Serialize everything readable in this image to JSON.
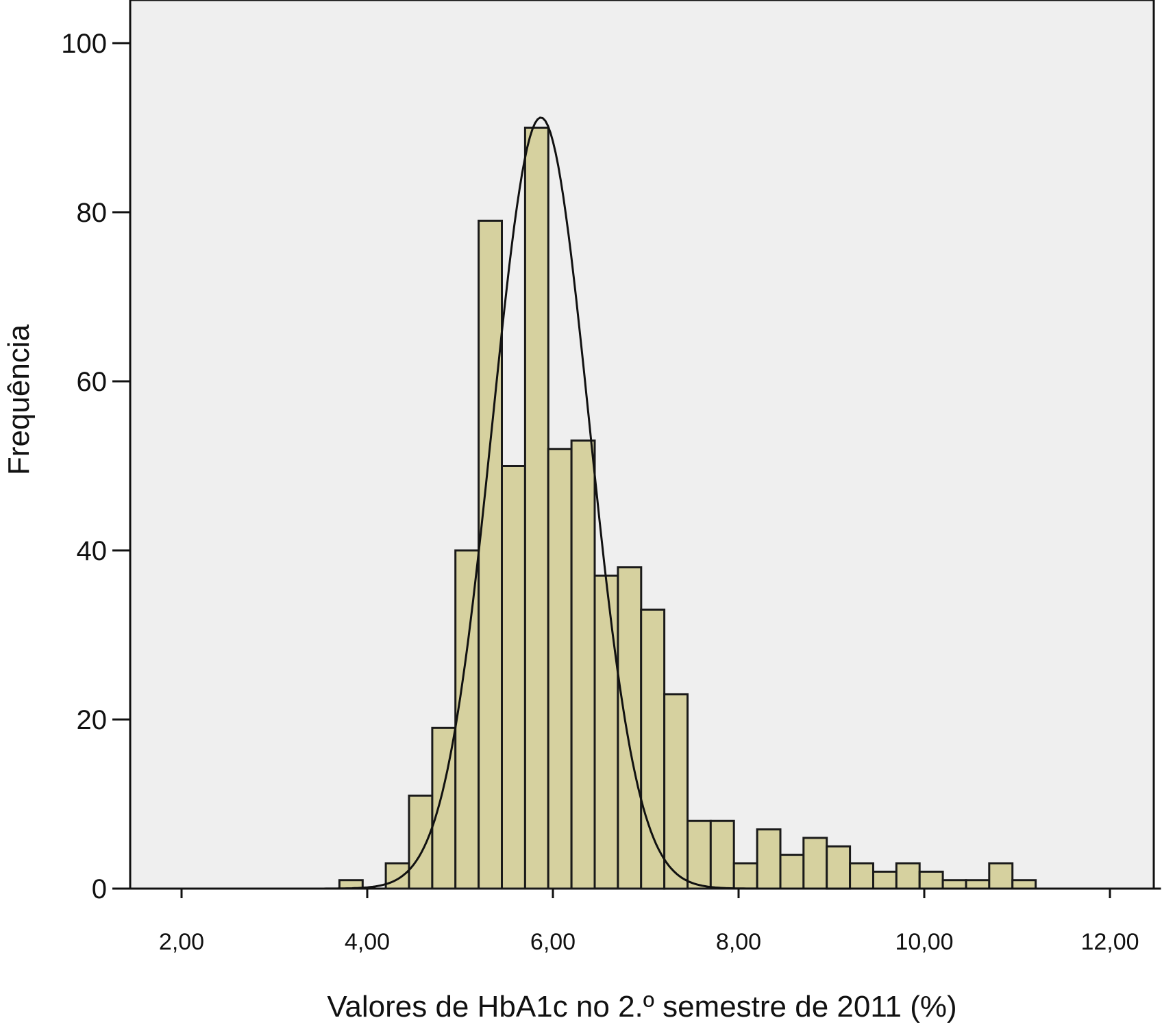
{
  "chart_data": {
    "type": "bar",
    "xlabel": "Valores de HbA1c no 2.º semestre de 2011 (%)",
    "ylabel": "Frequência",
    "xlim": [
      1.4,
      12.6
    ],
    "ylim": [
      0,
      105
    ],
    "x_ticks": [
      2,
      4,
      6,
      8,
      10,
      12
    ],
    "x_tick_labels": [
      "2,00",
      "4,00",
      "6,00",
      "8,00",
      "10,00",
      "12,00"
    ],
    "y_ticks": [
      0,
      20,
      40,
      60,
      80,
      100
    ],
    "y_tick_labels": [
      "0",
      "20",
      "40",
      "60",
      "80",
      "100"
    ],
    "bin_width": 0.25,
    "bins": [
      {
        "start": 3.7,
        "value": 1
      },
      {
        "start": 3.95,
        "value": 0
      },
      {
        "start": 4.2,
        "value": 3
      },
      {
        "start": 4.45,
        "value": 11
      },
      {
        "start": 4.7,
        "value": 19
      },
      {
        "start": 4.95,
        "value": 40
      },
      {
        "start": 5.2,
        "value": 79
      },
      {
        "start": 5.45,
        "value": 50
      },
      {
        "start": 5.7,
        "value": 90
      },
      {
        "start": 5.95,
        "value": 52
      },
      {
        "start": 6.2,
        "value": 53
      },
      {
        "start": 6.45,
        "value": 37
      },
      {
        "start": 6.7,
        "value": 38
      },
      {
        "start": 6.95,
        "value": 33
      },
      {
        "start": 7.2,
        "value": 23
      },
      {
        "start": 7.45,
        "value": 8
      },
      {
        "start": 7.7,
        "value": 8
      },
      {
        "start": 7.95,
        "value": 3
      },
      {
        "start": 8.2,
        "value": 7
      },
      {
        "start": 8.45,
        "value": 4
      },
      {
        "start": 8.7,
        "value": 6
      },
      {
        "start": 8.95,
        "value": 5
      },
      {
        "start": 9.2,
        "value": 3
      },
      {
        "start": 9.45,
        "value": 2
      },
      {
        "start": 9.7,
        "value": 3
      },
      {
        "start": 9.95,
        "value": 2
      },
      {
        "start": 10.2,
        "value": 1
      },
      {
        "start": 10.45,
        "value": 1
      },
      {
        "start": 10.7,
        "value": 3
      },
      {
        "start": 10.95,
        "value": 1
      }
    ],
    "normal_curve": {
      "mean": 5.87,
      "sd": 0.52,
      "peak": 91.2
    },
    "grid": false,
    "colors": {
      "plot_background": "#efefef",
      "bar_fill": "#d6d19f",
      "bar_stroke": "#1a1a1a",
      "curve": "#111111"
    }
  }
}
